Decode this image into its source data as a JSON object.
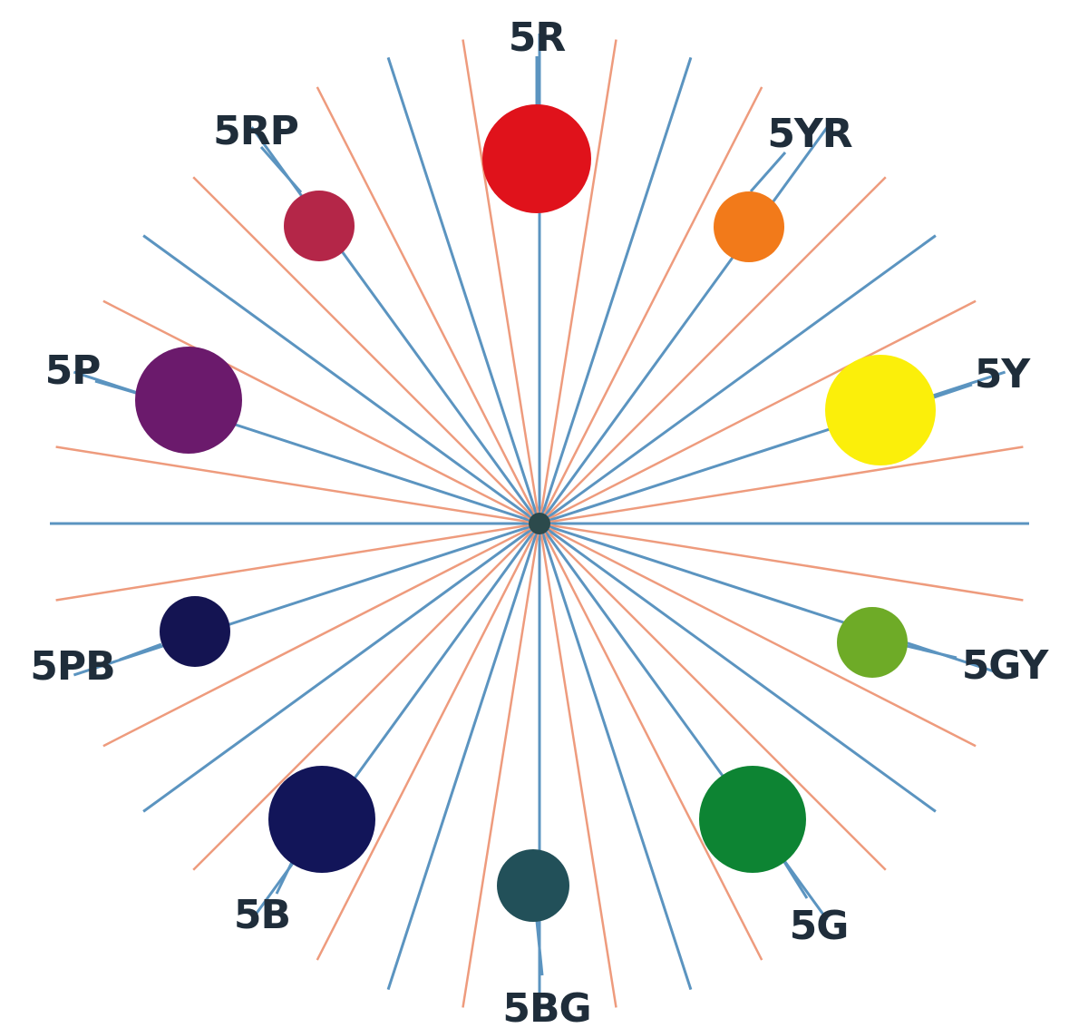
{
  "diagram": {
    "colors": {
      "background": "#ffffff",
      "hue_line": "#5b94c0",
      "minor_line": "#ee9b7d",
      "center_dot": "#2c4a4c",
      "label_text": "#1f2d3a"
    },
    "hues": [
      {
        "id": "5r",
        "label": "5R",
        "color": "#e0121b"
      },
      {
        "id": "5yr",
        "label": "5YR",
        "color": "#f27a1a"
      },
      {
        "id": "5y",
        "label": "5Y",
        "color": "#fbef0a"
      },
      {
        "id": "5gy",
        "label": "5GY",
        "color": "#6eab27"
      },
      {
        "id": "5g",
        "label": "5G",
        "color": "#0d8433"
      },
      {
        "id": "5bg",
        "label": "5BG",
        "color": "#225059"
      },
      {
        "id": "5b",
        "label": "5B",
        "color": "#121559"
      },
      {
        "id": "5pb",
        "label": "5PB",
        "color": "#141452"
      },
      {
        "id": "5p",
        "label": "5P",
        "color": "#6b1a6c"
      },
      {
        "id": "5rp",
        "label": "5RP",
        "color": "#b42648"
      }
    ]
  }
}
